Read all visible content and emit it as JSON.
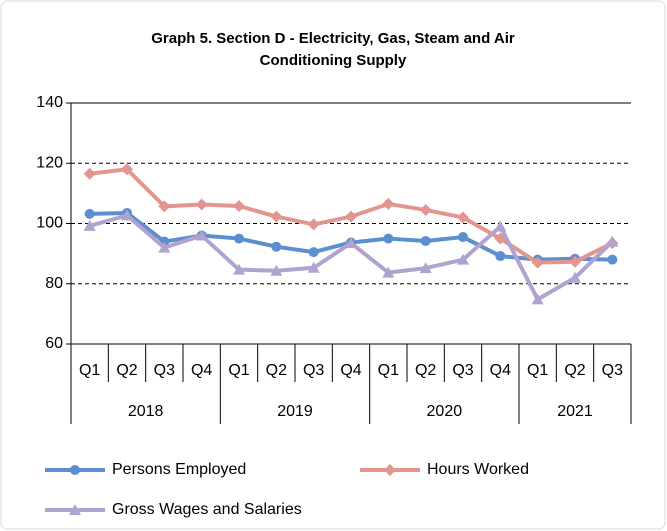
{
  "chart_data": {
    "type": "line",
    "title": "Graph 5. Section D - Electricity, Gas, Steam and Air Conditioning Supply",
    "categories": [
      "Q1",
      "Q2",
      "Q3",
      "Q4",
      "Q1",
      "Q2",
      "Q3",
      "Q4",
      "Q1",
      "Q2",
      "Q3",
      "Q4",
      "Q1",
      "Q2",
      "Q3"
    ],
    "groups": [
      {
        "label": "2018",
        "count": 4
      },
      {
        "label": "2019",
        "count": 4
      },
      {
        "label": "2020",
        "count": 4
      },
      {
        "label": "2021",
        "count": 3
      }
    ],
    "series": [
      {
        "name": "Persons Employed",
        "color": "#5b8fd0",
        "marker": "circle",
        "values": [
          103.2,
          103.5,
          94,
          96,
          95,
          92.3,
          90.5,
          93.7,
          95,
          94.2,
          95.5,
          89.2,
          88,
          88.3,
          88
        ]
      },
      {
        "name": "Hours Worked",
        "color": "#e3958f",
        "marker": "diamond",
        "values": [
          116.5,
          118,
          105.7,
          106.3,
          105.8,
          102.3,
          99.7,
          102.3,
          106.5,
          104.5,
          102,
          95,
          87,
          87.3,
          93.5
        ]
      },
      {
        "name": "Gross Wages and Salaries",
        "color": "#b0a3cf",
        "marker": "triangle",
        "values": [
          99.2,
          102.7,
          92,
          96,
          84.7,
          84.3,
          85.3,
          93.5,
          83.7,
          85.2,
          88,
          99,
          74.8,
          82,
          94
        ]
      }
    ],
    "ylim": [
      60,
      140
    ],
    "yticks": [
      60,
      80,
      100,
      120,
      140
    ],
    "grid": true
  }
}
